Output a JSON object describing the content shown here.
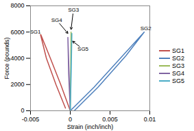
{
  "chart_data": {
    "type": "line",
    "x_label": "Strain (inch/inch)",
    "y_label": "Force (pounds)",
    "xlim": [
      -0.005,
      0.01
    ],
    "xticks": [
      -0.005,
      0,
      0.005,
      0.01
    ],
    "ylim": [
      0,
      8000
    ],
    "yticks": [
      0,
      2000,
      4000,
      6000,
      8000
    ],
    "grid": false,
    "legend": "right",
    "series": [
      {
        "name": "SG1",
        "color": "#c0504d",
        "x": [
          0,
          -0.0012,
          -0.0025,
          -0.0038,
          -0.003,
          -0.0018,
          -0.0006
        ],
        "values": [
          0,
          2000,
          4000,
          5950,
          4000,
          2000,
          200
        ]
      },
      {
        "name": "SG2",
        "color": "#4f81bd",
        "x": [
          0,
          0.003,
          0.006,
          0.0093,
          0.007,
          0.0035,
          0.0005
        ],
        "values": [
          0,
          1800,
          3800,
          6000,
          4200,
          1800,
          0
        ]
      },
      {
        "name": "SG3",
        "color": "#9bbb59",
        "x": [
          0,
          5e-05,
          0.0001,
          5e-05,
          0
        ],
        "values": [
          0,
          3000,
          6000,
          3000,
          0
        ]
      },
      {
        "name": "SG4",
        "color": "#8064a2",
        "x": [
          0,
          -0.00015,
          -0.0003,
          -0.0002,
          0
        ],
        "values": [
          0,
          2800,
          5600,
          2800,
          0
        ]
      },
      {
        "name": "SG5",
        "color": "#4bacc6",
        "x": [
          0,
          0.0001,
          0.0002,
          0.00012,
          0
        ],
        "values": [
          0,
          3000,
          5900,
          3000,
          0
        ]
      }
    ],
    "annotations": [
      {
        "text": "SG1",
        "x": -0.0044,
        "y": 6000
      },
      {
        "text": "SG2",
        "x": 0.0095,
        "y": 6300
      },
      {
        "text": "SG3",
        "x": 0.0004,
        "y": 7700,
        "arrow_to": [
          0.0001,
          6200
        ]
      },
      {
        "text": "SG4",
        "x": -0.0017,
        "y": 6900,
        "arrow_to": [
          -0.0003,
          5900
        ]
      },
      {
        "text": "SG5",
        "x": 0.0016,
        "y": 4700,
        "arrow_to": [
          0.0003,
          5300
        ]
      }
    ]
  }
}
